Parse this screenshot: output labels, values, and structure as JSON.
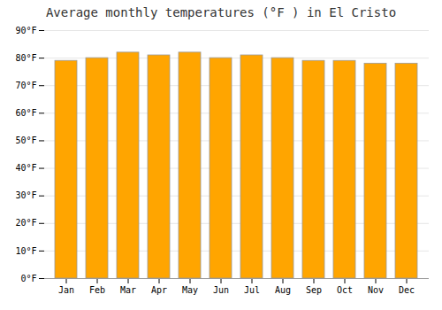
{
  "chart_data": {
    "type": "bar",
    "title": "Average monthly temperatures (°F ) in El Cristo",
    "categories": [
      "Jan",
      "Feb",
      "Mar",
      "Apr",
      "May",
      "Jun",
      "Jul",
      "Aug",
      "Sep",
      "Oct",
      "Nov",
      "Dec"
    ],
    "values": [
      79,
      80,
      82,
      81,
      82,
      80,
      81,
      80,
      79,
      79,
      78,
      78
    ],
    "color": "#FFA500",
    "ylim": [
      0,
      90
    ],
    "yticks": [
      {
        "value": 0,
        "label": "0°F"
      },
      {
        "value": 10,
        "label": "10°F"
      },
      {
        "value": 20,
        "label": "20°F"
      },
      {
        "value": 30,
        "label": "30°F"
      },
      {
        "value": 40,
        "label": "40°F"
      },
      {
        "value": 50,
        "label": "50°F"
      },
      {
        "value": 60,
        "label": "60°F"
      },
      {
        "value": 70,
        "label": "70°F"
      },
      {
        "value": 80,
        "label": "80°F"
      },
      {
        "value": 90,
        "label": "90°F"
      }
    ],
    "grid": true
  }
}
